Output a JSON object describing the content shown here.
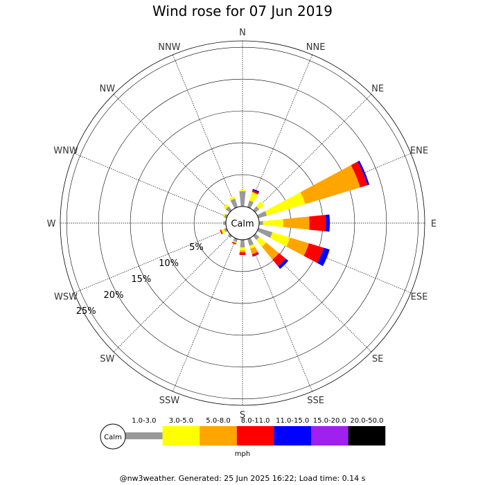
{
  "chart_data": {
    "type": "wind-rose",
    "title": "Wind rose for 07 Jun 2019",
    "directions": [
      "N",
      "NNE",
      "NE",
      "ENE",
      "E",
      "ESE",
      "SE",
      "SSE",
      "S",
      "SSW",
      "SW",
      "WSW",
      "W",
      "WNW",
      "NW",
      "NNW"
    ],
    "center_label": "Calm",
    "radial_ticks": [
      5,
      10,
      15,
      20,
      25
    ],
    "radial_tick_labels": [
      "5%",
      "10%",
      "15%",
      "20%",
      "25%"
    ],
    "radial_max": 26,
    "unit": "mph",
    "bins": [
      {
        "label": "1.0-3.0",
        "color": "#999999"
      },
      {
        "label": "3.0-5.0",
        "color": "#ffff00"
      },
      {
        "label": "5.0-8.0",
        "color": "#ffa500"
      },
      {
        "label": "8.0-11.0",
        "color": "#ff0000"
      },
      {
        "label": "11.0-15.0",
        "color": "#0000ff"
      },
      {
        "label": "15.0-20.0",
        "color": "#a020f0"
      },
      {
        "label": "20.0-50.0",
        "color": "#000000"
      }
    ],
    "series": [
      {
        "direction": "N",
        "values": [
          2.4,
          0.2,
          0,
          0,
          0,
          0,
          0
        ]
      },
      {
        "direction": "NNE",
        "values": [
          1.1,
          1.4,
          0,
          0.3,
          0.2,
          0,
          0
        ]
      },
      {
        "direction": "NE",
        "values": [
          0.8,
          1.0,
          0,
          0,
          0,
          0,
          0
        ]
      },
      {
        "direction": "ENE",
        "values": [
          1.4,
          6.3,
          9.0,
          1.2,
          0.3,
          0,
          0
        ]
      },
      {
        "direction": "E",
        "values": [
          0.6,
          3.2,
          4.1,
          2.6,
          0.6,
          0,
          0
        ]
      },
      {
        "direction": "ESE",
        "values": [
          2.3,
          2.9,
          3.1,
          2.4,
          1.0,
          0,
          0
        ]
      },
      {
        "direction": "SE",
        "values": [
          0.8,
          1.4,
          2.6,
          1.4,
          0.5,
          0,
          0
        ]
      },
      {
        "direction": "SSE",
        "values": [
          1.1,
          0.5,
          0.9,
          0.3,
          0.1,
          0,
          0
        ]
      },
      {
        "direction": "S",
        "values": [
          1.2,
          0.5,
          0.3,
          0.4,
          0,
          0,
          0
        ]
      },
      {
        "direction": "SSW",
        "values": [
          0.5,
          0.2,
          0,
          0.2,
          0,
          0,
          0
        ]
      },
      {
        "direction": "SW",
        "values": [
          0.4,
          0,
          0,
          0,
          0,
          0,
          0
        ]
      },
      {
        "direction": "WSW",
        "values": [
          0.4,
          0.5,
          0,
          0.2,
          0,
          0,
          0
        ]
      },
      {
        "direction": "W",
        "values": [
          0.4,
          0,
          0,
          0,
          0,
          0,
          0
        ]
      },
      {
        "direction": "WNW",
        "values": [
          0.4,
          0.2,
          0,
          0,
          0,
          0,
          0
        ]
      },
      {
        "direction": "NW",
        "values": [
          0.8,
          0.5,
          0,
          0,
          0,
          0,
          0
        ]
      },
      {
        "direction": "NNW",
        "values": [
          1.4,
          0.4,
          0,
          0,
          0,
          0,
          0
        ]
      }
    ],
    "legend": {
      "calm_label": "Calm",
      "unit_label": "mph"
    }
  },
  "footer": "@nw3weather. Generated: 25 Jun 2025 16:22; Load time: 0.14 s"
}
